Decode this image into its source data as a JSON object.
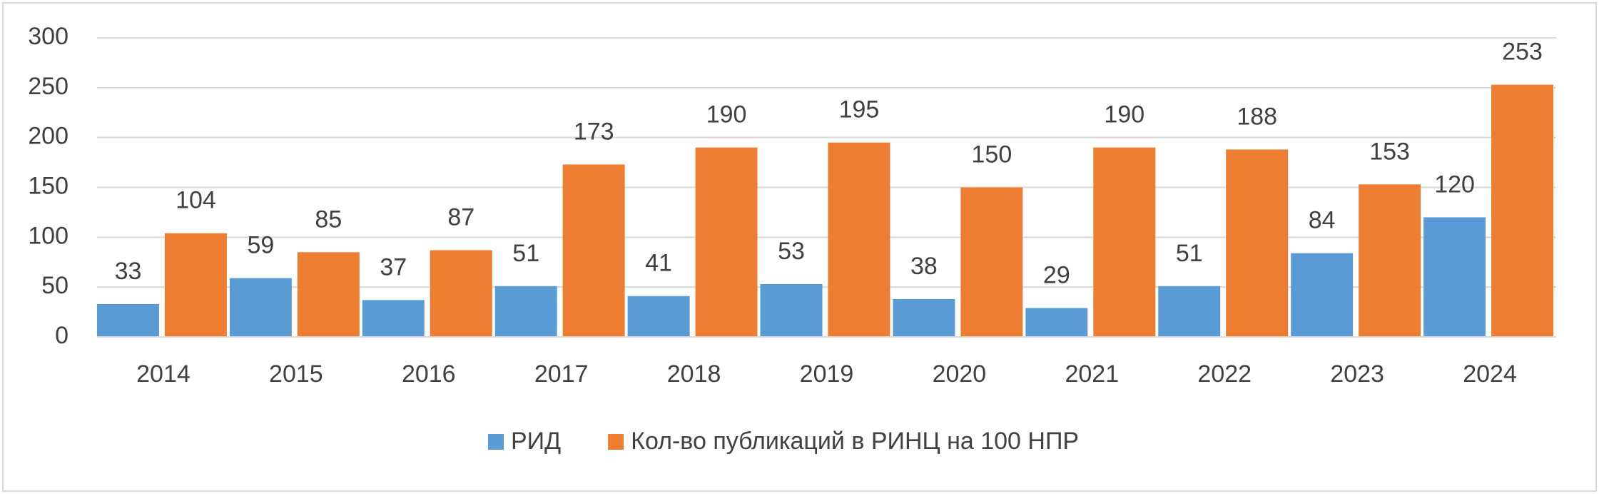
{
  "chart_data": {
    "type": "bar",
    "categories": [
      "2014",
      "2015",
      "2016",
      "2017",
      "2018",
      "2019",
      "2020",
      "2021",
      "2022",
      "2023",
      "2024"
    ],
    "series": [
      {
        "name": "РИД",
        "color": "#5b9bd5",
        "values": [
          33,
          59,
          37,
          51,
          41,
          53,
          38,
          29,
          51,
          84,
          120
        ]
      },
      {
        "name": "Кол-во публикаций в РИНЦ на 100 НПР",
        "color": "#ed7d31",
        "values": [
          104,
          85,
          87,
          173,
          190,
          195,
          150,
          190,
          188,
          153,
          253
        ]
      }
    ],
    "ylim": [
      0,
      300
    ],
    "yticks": [
      0,
      50,
      100,
      150,
      200,
      250,
      300
    ],
    "grid": true,
    "legend": "bottom"
  }
}
